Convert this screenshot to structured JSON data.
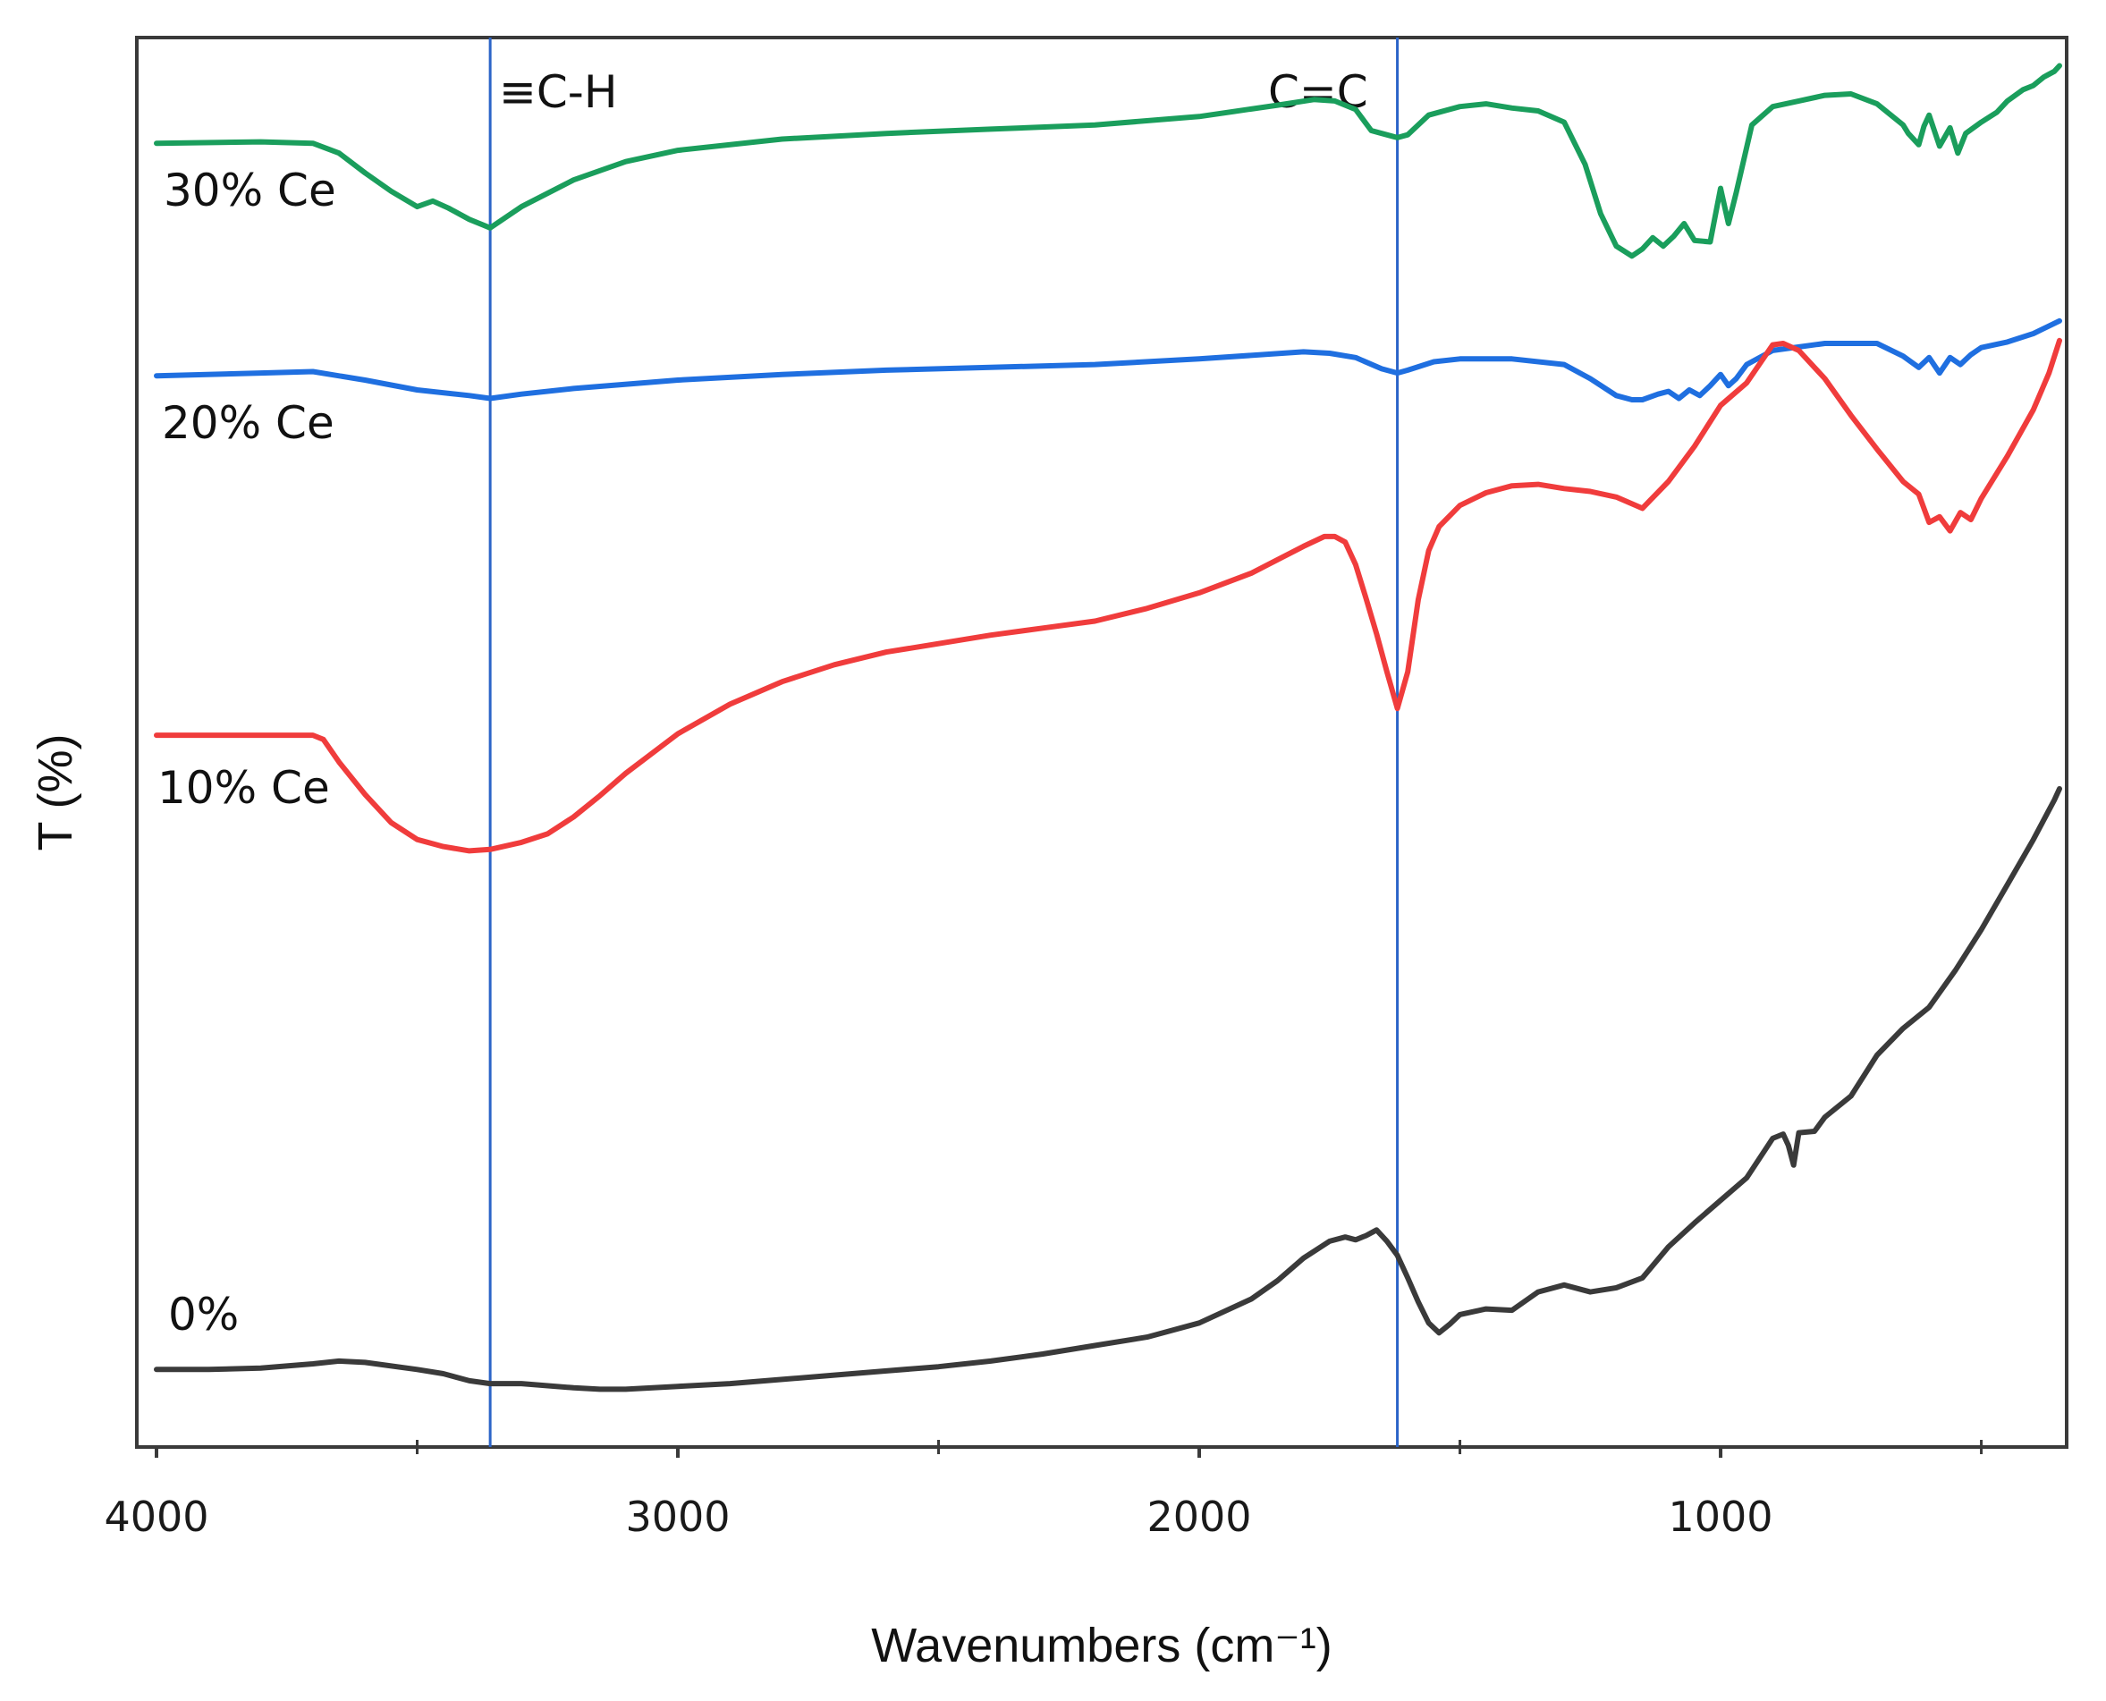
{
  "chart_data": {
    "type": "line",
    "title": "",
    "xlabel": "Wavenumbers (cm⁻¹)",
    "ylabel": "T (%)",
    "xlim": [
      4000,
      350
    ],
    "x_reversed": true,
    "ylim": [
      0,
      100
    ],
    "y_ticks_shown": false,
    "x_ticks": [
      4000,
      3000,
      2000,
      1000
    ],
    "x_minor_ticks": [
      3500,
      2500,
      1500,
      500
    ],
    "grid": false,
    "colors": {
      "30% Ce": "#1a9e5c",
      "20% Ce": "#1f6fe0",
      "10% Ce": "#f03c3c",
      "0%": "#3a3a3a",
      "annotation": "#2b64c8"
    },
    "annotations": [
      {
        "label": "≡C-H",
        "x": 3360
      },
      {
        "label": "C=C",
        "x": 1620
      }
    ],
    "series": [
      {
        "name": "30% Ce",
        "x": [
          4000,
          3800,
          3700,
          3650,
          3600,
          3550,
          3500,
          3470,
          3440,
          3400,
          3360,
          3300,
          3200,
          3100,
          3000,
          2800,
          2600,
          2400,
          2200,
          2000,
          1850,
          1780,
          1740,
          1700,
          1670,
          1650,
          1630,
          1620,
          1600,
          1560,
          1500,
          1450,
          1400,
          1350,
          1300,
          1260,
          1230,
          1200,
          1170,
          1150,
          1130,
          1110,
          1090,
          1070,
          1050,
          1020,
          1000,
          985,
          970,
          940,
          900,
          850,
          800,
          750,
          700,
          650,
          640,
          620,
          610,
          600,
          580,
          560,
          545,
          530,
          500,
          470,
          450,
          420,
          400,
          380,
          360,
          350
        ],
        "y": [
          92.5,
          92.6,
          92.5,
          91.8,
          90.4,
          89.1,
          88.0,
          88.4,
          87.9,
          87.1,
          86.5,
          88.0,
          89.9,
          91.2,
          92.0,
          92.8,
          93.2,
          93.5,
          93.8,
          94.4,
          95.2,
          95.6,
          95.5,
          94.9,
          93.4,
          93.2,
          93.0,
          92.9,
          93.1,
          94.5,
          95.1,
          95.3,
          95.0,
          94.8,
          94.0,
          91.0,
          87.5,
          85.2,
          84.5,
          85.0,
          85.8,
          85.2,
          85.9,
          86.8,
          85.6,
          85.5,
          89.3,
          86.8,
          89.0,
          93.8,
          95.1,
          95.5,
          95.9,
          96.0,
          95.3,
          93.8,
          93.2,
          92.4,
          93.7,
          94.5,
          92.3,
          93.6,
          91.8,
          93.2,
          94.0,
          94.7,
          95.5,
          96.3,
          96.6,
          97.2,
          97.6,
          98.0
        ]
      },
      {
        "name": "20% Ce",
        "x": [
          4000,
          3800,
          3700,
          3600,
          3500,
          3400,
          3360,
          3300,
          3200,
          3000,
          2800,
          2600,
          2400,
          2200,
          2000,
          1800,
          1750,
          1700,
          1650,
          1620,
          1600,
          1550,
          1500,
          1400,
          1300,
          1250,
          1200,
          1170,
          1150,
          1120,
          1100,
          1080,
          1060,
          1040,
          1020,
          1000,
          985,
          970,
          950,
          900,
          800,
          700,
          650,
          620,
          600,
          580,
          560,
          540,
          520,
          500,
          450,
          400,
          350
        ],
        "y": [
          76.0,
          76.2,
          76.3,
          75.7,
          75.0,
          74.6,
          74.4,
          74.7,
          75.1,
          75.7,
          76.1,
          76.4,
          76.6,
          76.8,
          77.2,
          77.7,
          77.6,
          77.3,
          76.5,
          76.2,
          76.4,
          77.0,
          77.2,
          77.2,
          76.8,
          75.8,
          74.6,
          74.3,
          74.3,
          74.7,
          74.9,
          74.4,
          75.0,
          74.6,
          75.3,
          76.1,
          75.3,
          75.8,
          76.8,
          77.8,
          78.3,
          78.3,
          77.4,
          76.6,
          77.3,
          76.2,
          77.3,
          76.8,
          77.5,
          78.0,
          78.4,
          79.0,
          79.9
        ]
      },
      {
        "name": "10% Ce",
        "x": [
          4000,
          3800,
          3700,
          3680,
          3650,
          3600,
          3550,
          3500,
          3450,
          3400,
          3360,
          3300,
          3250,
          3200,
          3150,
          3100,
          3000,
          2900,
          2800,
          2700,
          2600,
          2500,
          2400,
          2300,
          2200,
          2100,
          2000,
          1900,
          1800,
          1760,
          1740,
          1720,
          1700,
          1680,
          1660,
          1640,
          1620,
          1600,
          1580,
          1560,
          1540,
          1500,
          1450,
          1400,
          1350,
          1300,
          1250,
          1200,
          1150,
          1100,
          1050,
          1000,
          950,
          900,
          880,
          850,
          800,
          750,
          700,
          650,
          620,
          600,
          580,
          560,
          540,
          520,
          500,
          450,
          400,
          370,
          350
        ],
        "y": [
          50.5,
          50.5,
          50.5,
          50.2,
          48.6,
          46.3,
          44.3,
          43.1,
          42.6,
          42.3,
          42.4,
          42.9,
          43.5,
          44.7,
          46.2,
          47.8,
          50.6,
          52.7,
          54.3,
          55.5,
          56.4,
          57.0,
          57.6,
          58.1,
          58.6,
          59.5,
          60.6,
          62.0,
          63.9,
          64.6,
          64.6,
          64.2,
          62.6,
          60.2,
          57.7,
          55.0,
          52.4,
          55.0,
          60.1,
          63.6,
          65.3,
          66.8,
          67.7,
          68.2,
          68.3,
          68.0,
          67.8,
          67.4,
          66.6,
          68.5,
          71.0,
          73.9,
          75.5,
          78.2,
          78.3,
          77.8,
          75.8,
          73.2,
          70.8,
          68.5,
          67.6,
          65.6,
          66.0,
          65.0,
          66.3,
          65.8,
          67.3,
          70.3,
          73.6,
          76.2,
          78.5
        ]
      },
      {
        "name": "0%",
        "x": [
          4000,
          3900,
          3800,
          3700,
          3650,
          3600,
          3500,
          3450,
          3400,
          3360,
          3300,
          3200,
          3150,
          3100,
          3000,
          2900,
          2800,
          2700,
          2600,
          2500,
          2400,
          2300,
          2200,
          2100,
          2000,
          1900,
          1850,
          1800,
          1750,
          1720,
          1700,
          1680,
          1660,
          1640,
          1620,
          1600,
          1580,
          1560,
          1540,
          1520,
          1500,
          1450,
          1400,
          1350,
          1300,
          1250,
          1200,
          1150,
          1100,
          1050,
          1000,
          950,
          900,
          880,
          870,
          860,
          850,
          820,
          800,
          750,
          700,
          650,
          600,
          550,
          500,
          450,
          400,
          360,
          350
        ],
        "y": [
          5.5,
          5.5,
          5.6,
          5.9,
          6.1,
          6.0,
          5.5,
          5.2,
          4.7,
          4.5,
          4.5,
          4.2,
          4.1,
          4.1,
          4.3,
          4.5,
          4.8,
          5.1,
          5.4,
          5.7,
          6.1,
          6.6,
          7.2,
          7.8,
          8.8,
          10.5,
          11.8,
          13.4,
          14.6,
          14.9,
          14.7,
          15.0,
          15.4,
          14.6,
          13.6,
          12.0,
          10.3,
          8.8,
          8.1,
          8.7,
          9.4,
          9.8,
          9.7,
          11.0,
          11.5,
          11.0,
          11.3,
          12.0,
          14.2,
          15.9,
          17.5,
          19.1,
          21.9,
          22.2,
          21.4,
          20.0,
          22.3,
          22.4,
          23.4,
          24.9,
          27.8,
          29.7,
          31.2,
          33.8,
          36.7,
          39.9,
          43.1,
          45.9,
          46.7
        ]
      }
    ]
  },
  "labels": {
    "series_30": "30% Ce",
    "series_20": "20% Ce",
    "series_10": "10% Ce",
    "series_0": "0%",
    "annot_ch": "≡C-H",
    "annot_cc": "C=C",
    "tick_4000": "4000",
    "tick_3000": "3000",
    "tick_2000": "2000",
    "tick_1000": "1000"
  }
}
